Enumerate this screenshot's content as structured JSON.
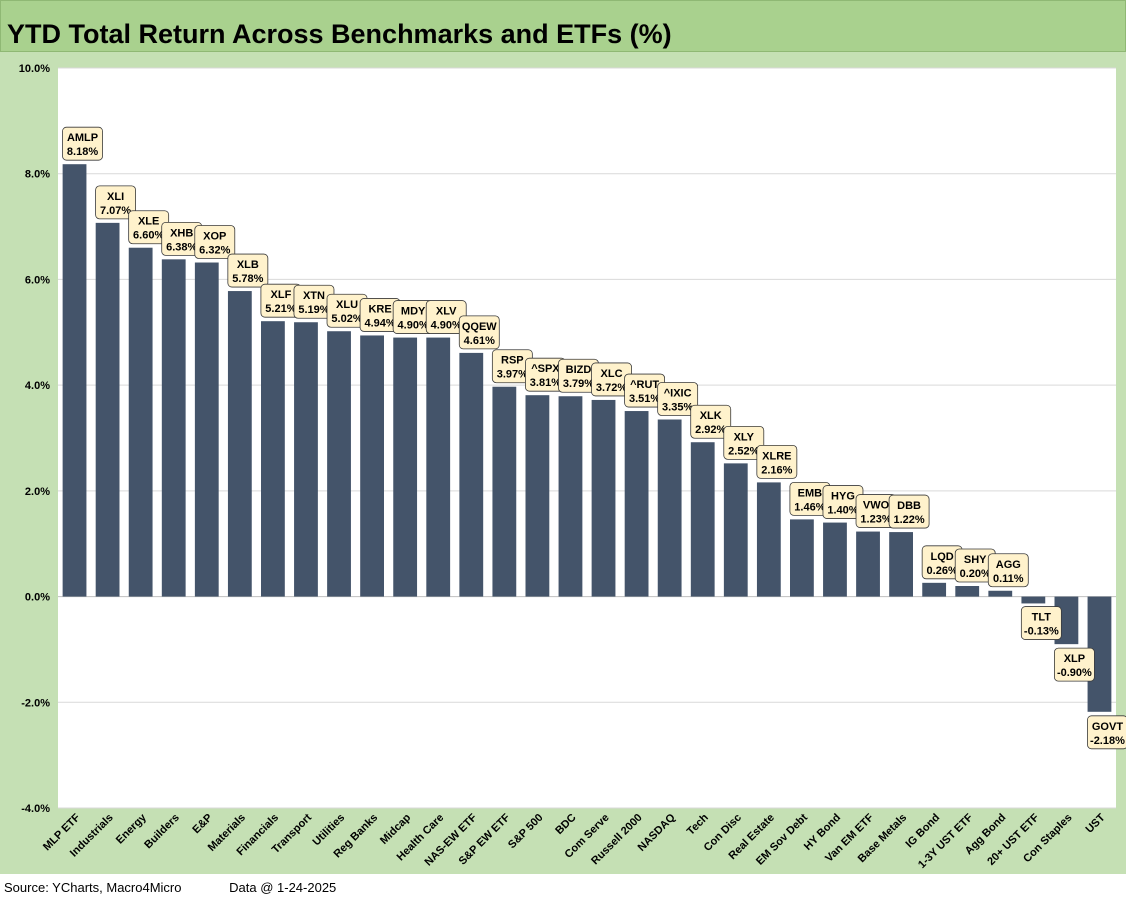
{
  "title": "YTD Total Return Across Benchmarks and ETFs (%)",
  "footer": {
    "source": "Source: YCharts, Macro4Micro",
    "data_date": "Data @ 1-24-2025"
  },
  "colors": {
    "title_bg": "#a9d18e",
    "frame_bg": "#c5e0b4",
    "bar": "#44546a",
    "label_bg": "#fff2cc"
  },
  "chart_data": {
    "type": "bar",
    "title": "YTD Total Return Across Benchmarks and ETFs (%)",
    "xlabel": "",
    "ylabel": "",
    "ylim": [
      -4,
      10
    ],
    "yticks": [
      "10.0%",
      "8.0%",
      "6.0%",
      "4.0%",
      "2.0%",
      "0.0%",
      "-2.0%",
      "-4.0%"
    ],
    "grid": true,
    "categories": [
      "MLP ETF",
      "Industrials",
      "Energy",
      "Builders",
      "E&P",
      "Materials",
      "Financials",
      "Transport",
      "Utilities",
      "Reg Banks",
      "Midcap",
      "Health Care",
      "NAS-EW ETF",
      "S&P EW ETF",
      "S&P 500",
      "BDC",
      "Com Serve",
      "Russell 2000",
      "NASDAQ",
      "Tech",
      "Con Disc",
      "Real Estate",
      "EM Sov Debt",
      "HY Bond",
      "Van EM ETF",
      "Base Metals",
      "IG Bond",
      "1-3Y UST ETF",
      "Agg Bond",
      "20+ UST ETF",
      "Con Staples",
      "UST"
    ],
    "tickers": [
      "AMLP",
      "XLI",
      "XLE",
      "XHB",
      "XOP",
      "XLB",
      "XLF",
      "XTN",
      "XLU",
      "KRE",
      "MDY",
      "XLV",
      "QQEW",
      "RSP",
      "^SPX",
      "BIZD",
      "XLC",
      "^RUT",
      "^IXIC",
      "XLK",
      "XLY",
      "XLRE",
      "EMB",
      "HYG",
      "VWO",
      "DBB",
      "LQD",
      "SHY",
      "AGG",
      "TLT",
      "XLP",
      "GOVT"
    ],
    "values": [
      8.18,
      7.07,
      6.6,
      6.38,
      6.32,
      5.78,
      5.21,
      5.19,
      5.02,
      4.94,
      4.9,
      4.9,
      4.61,
      3.97,
      3.81,
      3.79,
      3.72,
      3.51,
      3.35,
      2.92,
      2.52,
      2.16,
      1.46,
      1.4,
      1.23,
      1.22,
      0.26,
      0.2,
      0.11,
      -0.13,
      -0.9,
      -2.18
    ],
    "value_labels": [
      "8.18%",
      "7.07%",
      "6.60%",
      "6.38%",
      "6.32%",
      "5.78%",
      "5.21%",
      "5.19%",
      "5.02%",
      "4.94%",
      "4.90%",
      "4.90%",
      "4.61%",
      "3.97%",
      "3.81%",
      "3.79%",
      "3.72%",
      "3.51%",
      "3.35%",
      "2.92%",
      "2.52%",
      "2.16%",
      "1.46%",
      "1.40%",
      "1.23%",
      "1.22%",
      "0.26%",
      "0.20%",
      "0.11%",
      "-0.13%",
      "-0.90%",
      "-2.18%"
    ]
  }
}
